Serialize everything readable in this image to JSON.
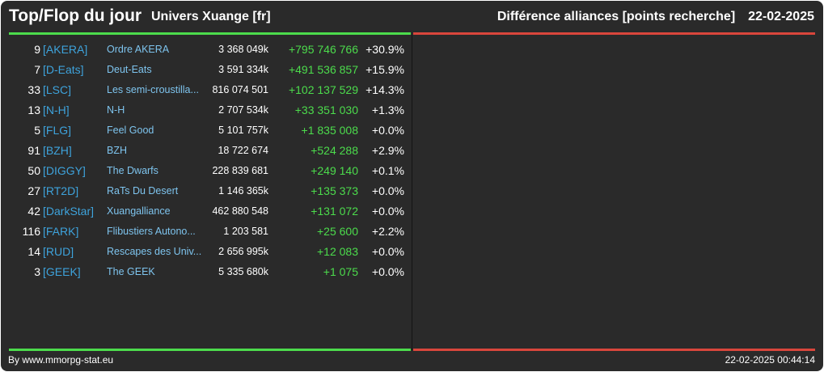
{
  "header": {
    "title": "Top/Flop du jour",
    "universe": "Univers Xuange [fr]",
    "category": "Différence alliances [points recherche]",
    "date": "22-02-2025"
  },
  "colors": {
    "positive": "#4cdc4c",
    "negative": "#d9463c",
    "tag": "#3ea3dc",
    "name": "#7ec4ee"
  },
  "top_list": [
    {
      "rank": "9",
      "tag": "[AKERA]",
      "name": "Ordre AKERA",
      "points": "3 368 049k",
      "diff": "+795 746 766",
      "pct": "+30.9%"
    },
    {
      "rank": "7",
      "tag": "[D-Eats]",
      "name": "Deut-Eats",
      "points": "3 591 334k",
      "diff": "+491 536 857",
      "pct": "+15.9%"
    },
    {
      "rank": "33",
      "tag": "[LSC]",
      "name": "Les semi-croustilla...",
      "points": "816 074 501",
      "diff": "+102 137 529",
      "pct": "+14.3%"
    },
    {
      "rank": "13",
      "tag": "[N-H]",
      "name": "N-H",
      "points": "2 707 534k",
      "diff": "+33 351 030",
      "pct": "+1.3%"
    },
    {
      "rank": "5",
      "tag": "[FLG]",
      "name": "Feel Good",
      "points": "5 101 757k",
      "diff": "+1 835 008",
      "pct": "+0.0%"
    },
    {
      "rank": "91",
      "tag": "[BZH]",
      "name": "BZH",
      "points": "18 722 674",
      "diff": "+524 288",
      "pct": "+2.9%"
    },
    {
      "rank": "50",
      "tag": "[DIGGY]",
      "name": "The Dwarfs",
      "points": "228 839 681",
      "diff": "+249 140",
      "pct": "+0.1%"
    },
    {
      "rank": "27",
      "tag": "[RT2D]",
      "name": "RaTs Du Desert",
      "points": "1 146 365k",
      "diff": "+135 373",
      "pct": "+0.0%"
    },
    {
      "rank": "42",
      "tag": "[DarkStar]",
      "name": "Xuangalliance",
      "points": "462 880 548",
      "diff": "+131 072",
      "pct": "+0.0%"
    },
    {
      "rank": "116",
      "tag": "[FARK]",
      "name": "Flibustiers Autono...",
      "points": "1 203 581",
      "diff": "+25 600",
      "pct": "+2.2%"
    },
    {
      "rank": "14",
      "tag": "[RUD]",
      "name": "Rescapes des Univ...",
      "points": "2 656 995k",
      "diff": "+12 083",
      "pct": "+0.0%"
    },
    {
      "rank": "3",
      "tag": "[GEEK]",
      "name": "The GEEK",
      "points": "5 335 680k",
      "diff": "+1 075",
      "pct": "+0.0%"
    }
  ],
  "flop_list": [],
  "footer": {
    "credit": "By www.mmorpg-stat.eu",
    "timestamp": "22-02-2025 00:44:14"
  }
}
